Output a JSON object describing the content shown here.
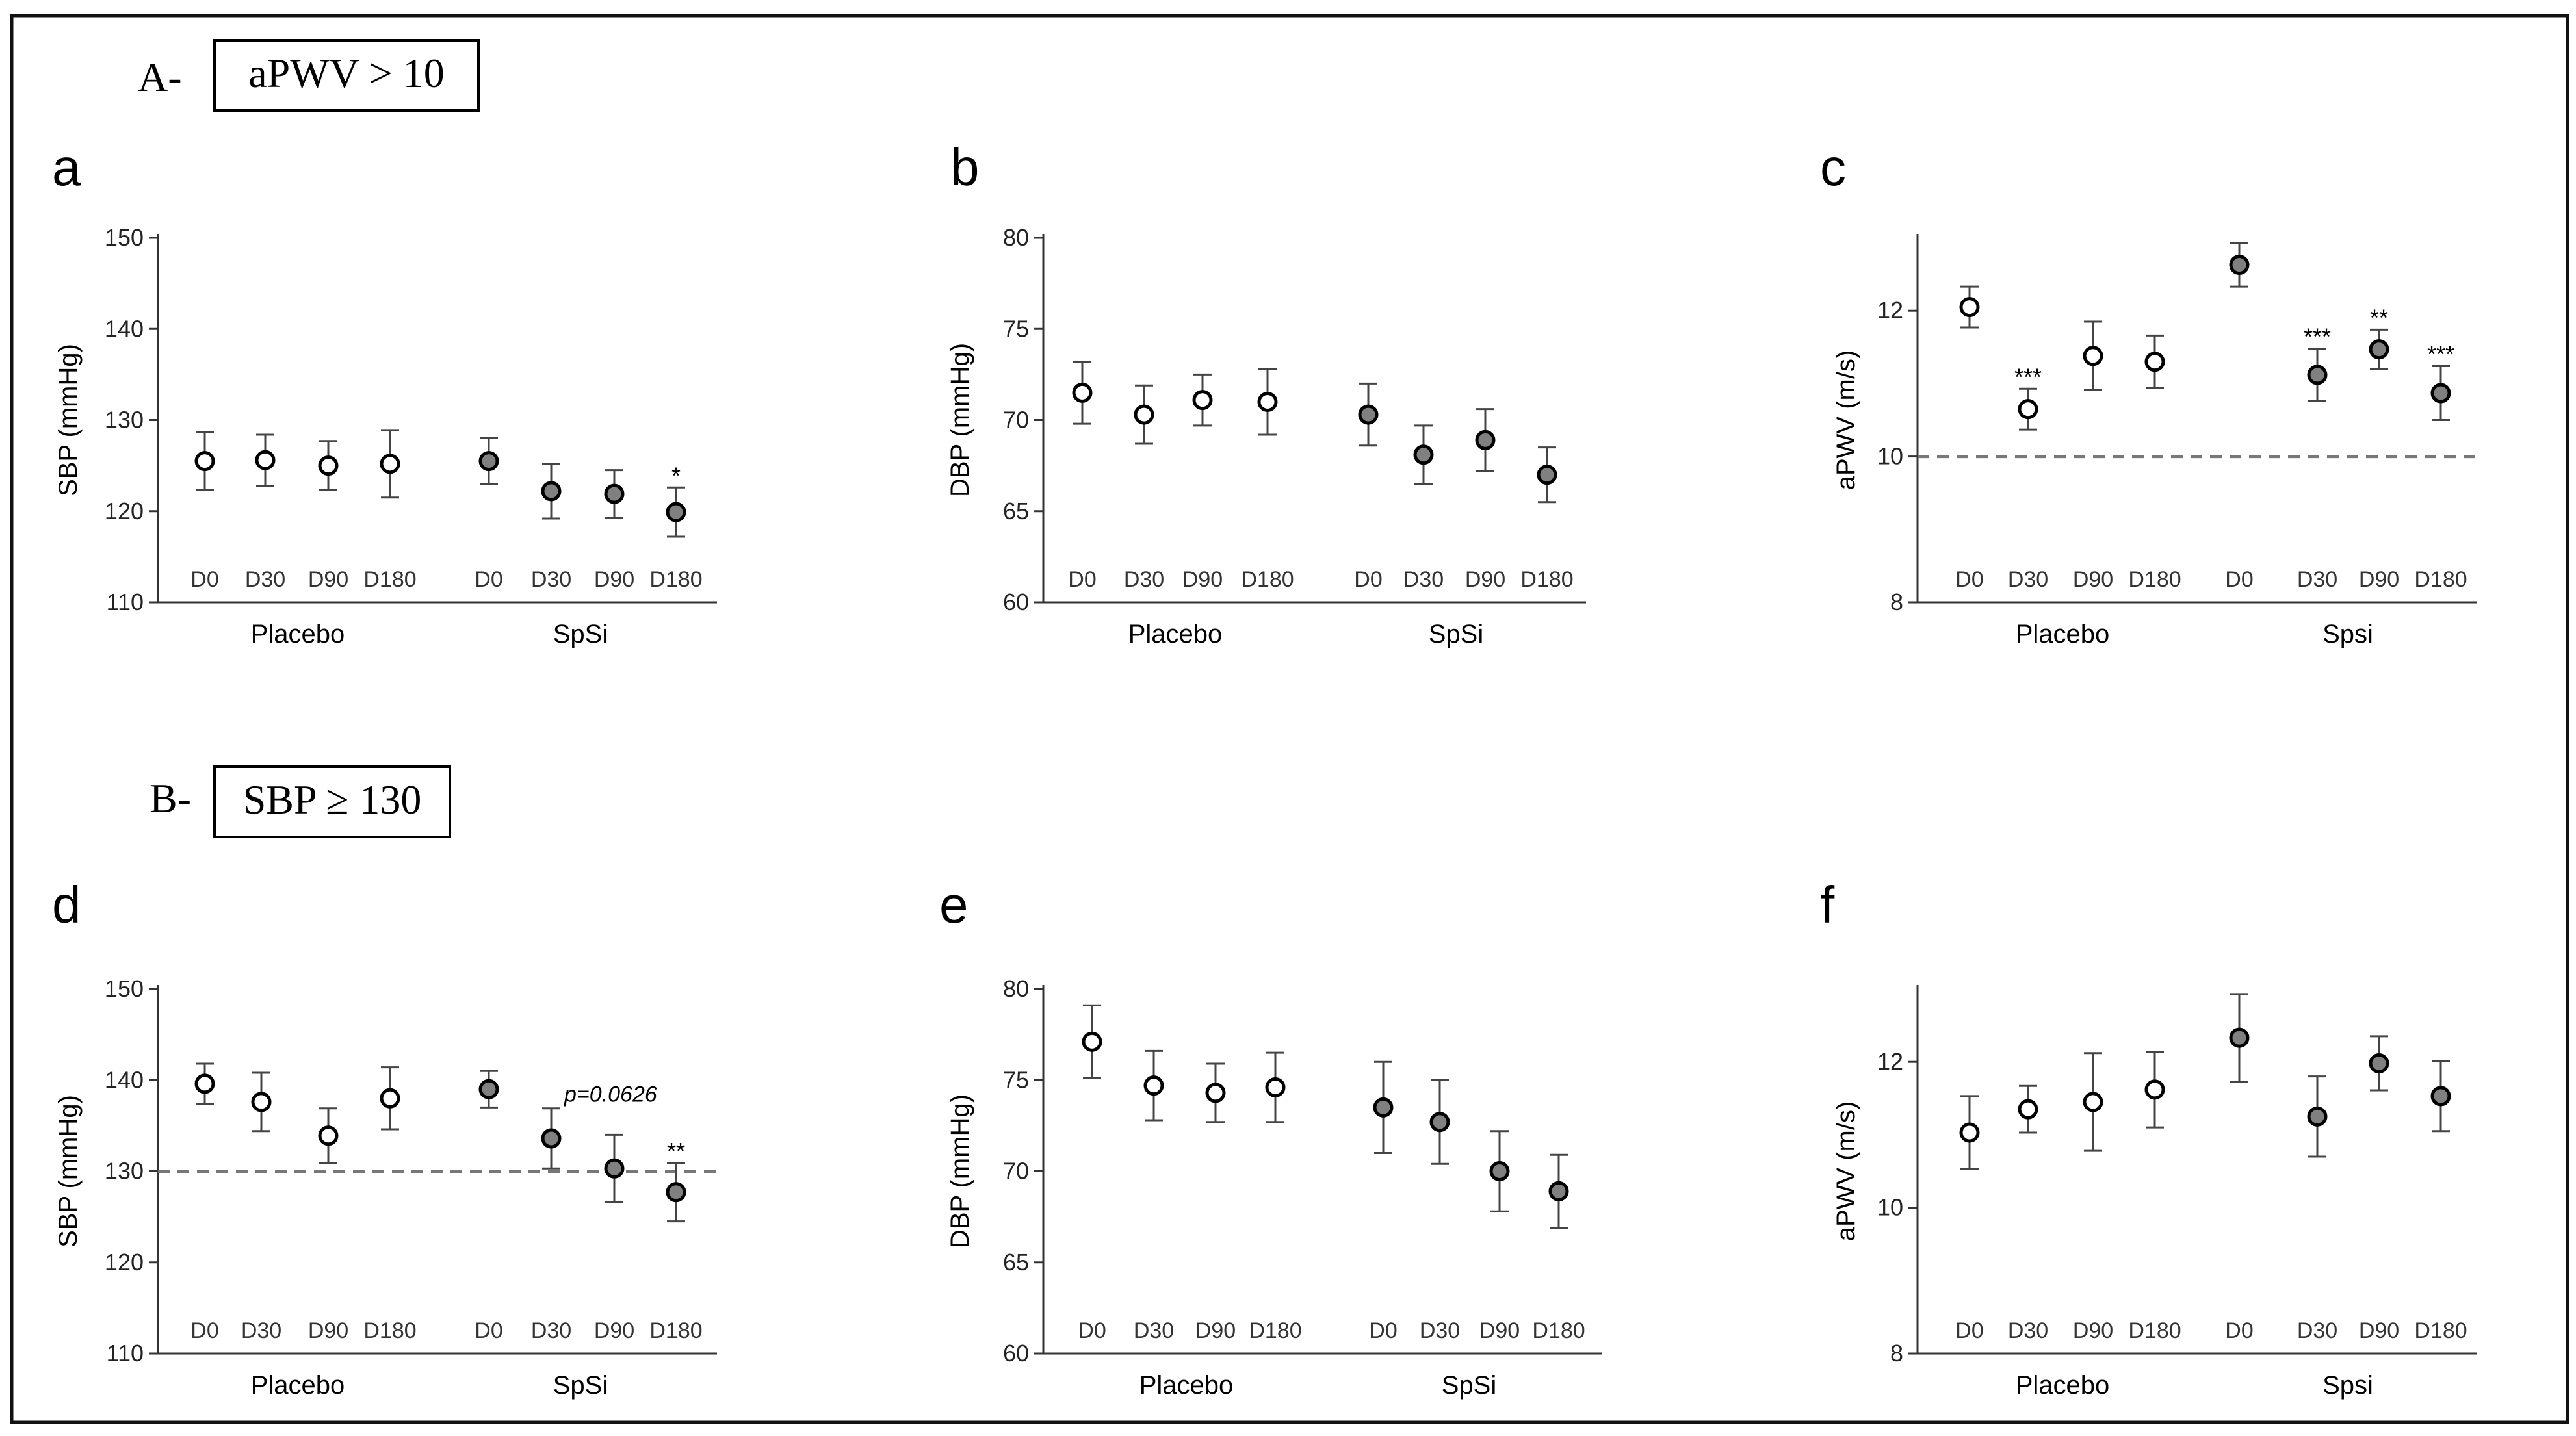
{
  "sections": [
    {
      "prefix": "A-",
      "label": "aPWV > 10"
    },
    {
      "prefix": "B-",
      "label": "SBP ≥ 130"
    }
  ],
  "chart_data": [
    {
      "panel": "a",
      "type": "scatter",
      "ylabel": "SBP (mmHg)",
      "ylim": [
        110,
        150
      ],
      "yticks": [
        110,
        120,
        130,
        140,
        150
      ],
      "timepoints": [
        "D0",
        "D30",
        "D90",
        "D180"
      ],
      "groups": [
        {
          "name": "Placebo",
          "fill": "#ffffff",
          "values": [
            125.5,
            125.6,
            125.0,
            125.2
          ],
          "errors": [
            3.2,
            2.8,
            2.7,
            3.7
          ],
          "annotations": [
            "",
            "",
            "",
            ""
          ]
        },
        {
          "name": "SpSi",
          "fill": "#808080",
          "values": [
            125.5,
            122.2,
            121.9,
            119.9
          ],
          "errors": [
            2.5,
            3.0,
            2.6,
            2.7
          ],
          "annotations": [
            "",
            "",
            "",
            "*"
          ]
        }
      ],
      "reference_line": null
    },
    {
      "panel": "b",
      "type": "scatter",
      "ylabel": "DBP (mmHg)",
      "ylim": [
        60,
        80
      ],
      "yticks": [
        60,
        65,
        70,
        75,
        80
      ],
      "timepoints": [
        "D0",
        "D30",
        "D90",
        "D180"
      ],
      "groups": [
        {
          "name": "Placebo",
          "fill": "#ffffff",
          "values": [
            71.5,
            70.3,
            71.1,
            71.0
          ],
          "errors": [
            1.7,
            1.6,
            1.4,
            1.8
          ],
          "annotations": [
            "",
            "",
            "",
            ""
          ]
        },
        {
          "name": "SpSi",
          "fill": "#808080",
          "values": [
            70.3,
            68.1,
            68.9,
            67.0
          ],
          "errors": [
            1.7,
            1.6,
            1.7,
            1.5
          ],
          "annotations": [
            "",
            "",
            "",
            ""
          ]
        }
      ],
      "reference_line": null
    },
    {
      "panel": "c",
      "type": "scatter",
      "ylabel": "aPWV (m/s)",
      "ylim": [
        8,
        13
      ],
      "yticks": [
        8,
        10,
        12
      ],
      "timepoints": [
        "D0",
        "D30",
        "D90",
        "D180"
      ],
      "groups": [
        {
          "name": "Placebo",
          "fill": "#ffffff",
          "values": [
            12.05,
            10.65,
            11.38,
            11.3
          ],
          "errors": [
            0.28,
            0.28,
            0.47,
            0.36
          ],
          "annotations": [
            "",
            "***",
            "",
            ""
          ]
        },
        {
          "name": "Spsi",
          "fill": "#808080",
          "values": [
            12.63,
            11.12,
            11.47,
            10.87
          ],
          "errors": [
            0.3,
            0.36,
            0.27,
            0.37
          ],
          "annotations": [
            "",
            "***",
            "**",
            "***"
          ]
        }
      ],
      "reference_line": 10
    },
    {
      "panel": "d",
      "type": "scatter",
      "ylabel": "SBP (mmHg)",
      "ylim": [
        110,
        150
      ],
      "yticks": [
        110,
        120,
        130,
        140,
        150
      ],
      "timepoints": [
        "D0",
        "D30",
        "D90",
        "D180"
      ],
      "groups": [
        {
          "name": "Placebo",
          "fill": "#ffffff",
          "values": [
            139.6,
            137.6,
            133.9,
            138.0
          ],
          "errors": [
            2.2,
            3.2,
            3.0,
            3.4
          ],
          "annotations": [
            "",
            "",
            "",
            ""
          ]
        },
        {
          "name": "SpSi",
          "fill": "#808080",
          "values": [
            139.0,
            133.6,
            130.3,
            127.7
          ],
          "errors": [
            2.0,
            3.3,
            3.7,
            3.2
          ],
          "annotations": [
            "",
            "p=0.0626",
            "",
            "**"
          ]
        }
      ],
      "reference_line": 130
    },
    {
      "panel": "e",
      "type": "scatter",
      "ylabel": "DBP (mmHg)",
      "ylim": [
        60,
        80
      ],
      "yticks": [
        60,
        65,
        70,
        75,
        80
      ],
      "timepoints": [
        "D0",
        "D30",
        "D90",
        "D180"
      ],
      "groups": [
        {
          "name": "Placebo",
          "fill": "#ffffff",
          "values": [
            77.1,
            74.7,
            74.3,
            74.6
          ],
          "errors": [
            2.0,
            1.9,
            1.6,
            1.9
          ],
          "annotations": [
            "",
            "",
            "",
            ""
          ]
        },
        {
          "name": "SpSi",
          "fill": "#808080",
          "values": [
            73.5,
            72.7,
            70.0,
            68.9
          ],
          "errors": [
            2.5,
            2.3,
            2.2,
            2.0
          ],
          "annotations": [
            "",
            "",
            "",
            ""
          ]
        }
      ],
      "reference_line": null
    },
    {
      "panel": "f",
      "type": "scatter",
      "ylabel": "aPWV (m/s)",
      "ylim": [
        8,
        13
      ],
      "yticks": [
        8,
        10,
        12
      ],
      "timepoints": [
        "D0",
        "D30",
        "D90",
        "D180"
      ],
      "groups": [
        {
          "name": "Placebo",
          "fill": "#ffffff",
          "values": [
            11.03,
            11.35,
            11.45,
            11.62
          ],
          "errors": [
            0.5,
            0.32,
            0.67,
            0.52
          ],
          "annotations": [
            "",
            "",
            "",
            ""
          ]
        },
        {
          "name": "Spsi",
          "fill": "#808080",
          "values": [
            12.33,
            11.25,
            11.98,
            11.53
          ],
          "errors": [
            0.6,
            0.55,
            0.37,
            0.48
          ],
          "annotations": [
            "",
            "",
            "",
            ""
          ]
        }
      ],
      "reference_line": null
    }
  ]
}
